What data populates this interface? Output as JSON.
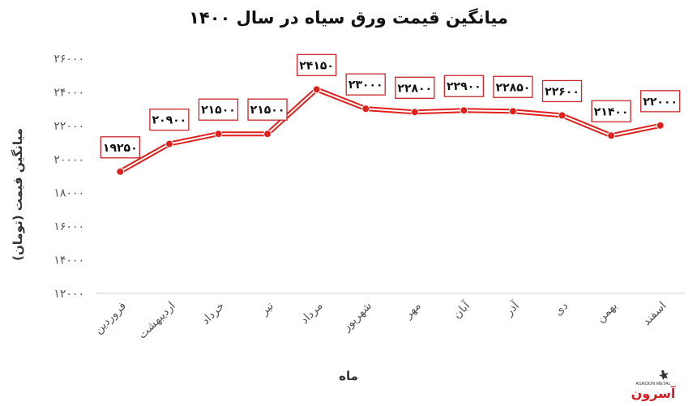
{
  "chart_data": {
    "type": "line",
    "title": "میانگین قیمت ورق سیاه در سال ۱۴۰۰",
    "xlabel": "ماه",
    "ylabel": "میانگین قیمت (تومان)",
    "ylim": [
      12000,
      26000
    ],
    "y_ticks": [
      12000,
      14000,
      16000,
      18000,
      20000,
      22000,
      24000,
      26000
    ],
    "y_tick_labels": [
      "۱۲۰۰۰",
      "۱۴۰۰۰",
      "۱۶۰۰۰",
      "۱۸۰۰۰",
      "۲۰۰۰۰",
      "۲۲۰۰۰",
      "۲۴۰۰۰",
      "۲۶۰۰۰"
    ],
    "categories": [
      "فروردین",
      "اردیبهشت",
      "خرداد",
      "تیر",
      "مرداد",
      "شهریور",
      "مهر",
      "آبان",
      "آذر",
      "دی",
      "بهمن",
      "اسفند"
    ],
    "series": [
      {
        "values": [
          19250,
          20900,
          21500,
          21500,
          24150,
          23000,
          22800,
          22900,
          22850,
          22600,
          21400,
          22000
        ],
        "data_labels": [
          "۱۹۲۵۰",
          "۲۰۹۰۰",
          "۲۱۵۰۰",
          "۲۱۵۰۰",
          "۲۴۱۵۰",
          "۲۳۰۰۰",
          "۲۲۸۰۰",
          "۲۲۹۰۰",
          "۲۲۸۵۰",
          "۲۲۶۰۰",
          "۲۱۴۰۰",
          "۲۲۰۰۰"
        ],
        "color": "#e0201c"
      }
    ],
    "grid": false,
    "legend": "none"
  },
  "watermark": {
    "text": "آسرون",
    "subtext": "ASROON METAL",
    "color": "#d21f26"
  }
}
